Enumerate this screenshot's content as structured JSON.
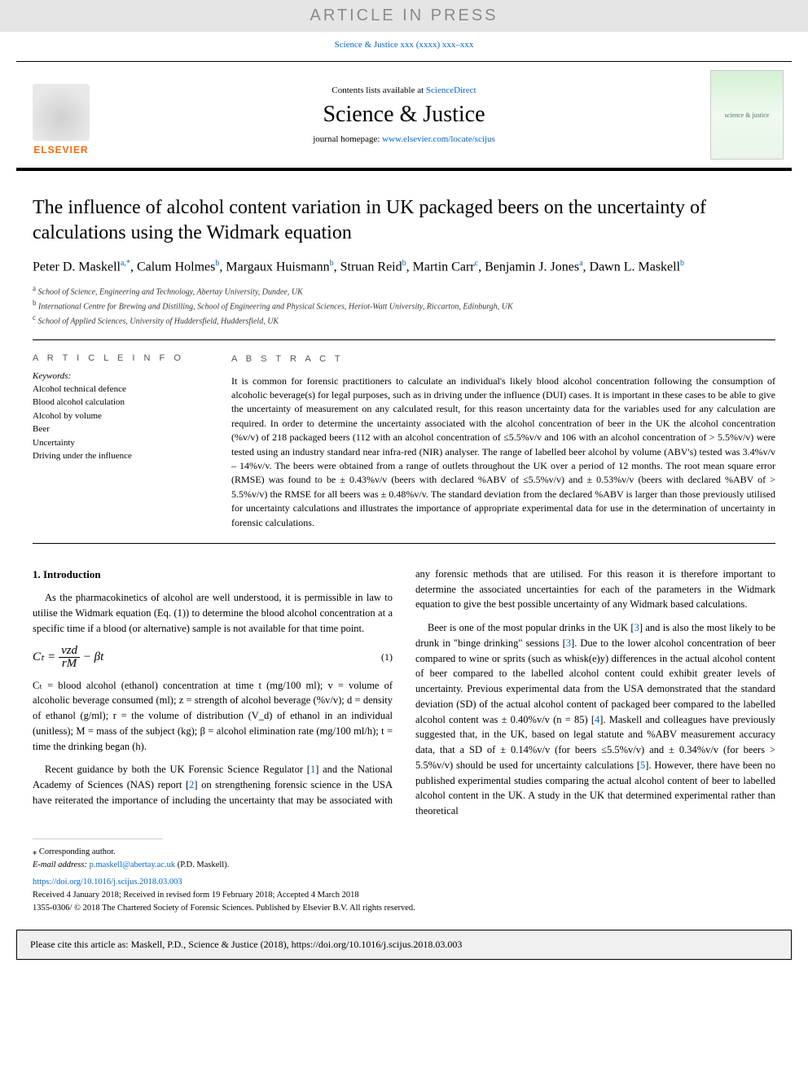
{
  "banner": {
    "text": "ARTICLE IN PRESS"
  },
  "journal_ref": "Science & Justice xxx (xxxx) xxx–xxx",
  "masthead": {
    "contents_prefix": "Contents lists available at ",
    "contents_link": "ScienceDirect",
    "journal_name": "Science & Justice",
    "homepage_prefix": "journal homepage: ",
    "homepage_url": "www.elsevier.com/locate/scijus",
    "publisher": "ELSEVIER",
    "cover_label": "science & justice"
  },
  "title": "The influence of alcohol content variation in UK packaged beers on the uncertainty of calculations using the Widmark equation",
  "authors_html": "Peter D. Maskell<sup>a,*</sup>, Calum Holmes<sup>b</sup>, Margaux Huismann<sup>b</sup>, Struan Reid<sup>b</sup>, Martin Carr<sup>c</sup>, Benjamin J. Jones<sup>a</sup>, Dawn L. Maskell<sup>b</sup>",
  "affiliations": [
    {
      "sup": "a",
      "text": "School of Science, Engineering and Technology, Abertay University, Dundee, UK"
    },
    {
      "sup": "b",
      "text": "International Centre for Brewing and Distilling, School of Engineering and Physical Sciences, Heriot-Watt University, Riccarton, Edinburgh, UK"
    },
    {
      "sup": "c",
      "text": "School of Applied Sciences, University of Huddersfield, Huddersfield, UK"
    }
  ],
  "article_info": {
    "heading": "A R T I C L E  I N F O",
    "kw_label": "Keywords:",
    "keywords": [
      "Alcohol technical defence",
      "Blood alcohol calculation",
      "Alcohol by volume",
      "Beer",
      "Uncertainty",
      "Driving under the influence"
    ]
  },
  "abstract": {
    "heading": "A B S T R A C T",
    "text": "It is common for forensic practitioners to calculate an individual's likely blood alcohol concentration following the consumption of alcoholic beverage(s) for legal purposes, such as in driving under the influence (DUI) cases. It is important in these cases to be able to give the uncertainty of measurement on any calculated result, for this reason uncertainty data for the variables used for any calculation are required. In order to determine the uncertainty associated with the alcohol concentration of beer in the UK the alcohol concentration (%v/v) of 218 packaged beers (112 with an alcohol concentration of ≤5.5%v/v and 106 with an alcohol concentration of > 5.5%v/v) were tested using an industry standard near infra-red (NIR) analyser. The range of labelled beer alcohol by volume (ABV's) tested was 3.4%v/v – 14%v/v. The beers were obtained from a range of outlets throughout the UK over a period of 12 months. The root mean square error (RMSE) was found to be ± 0.43%v/v (beers with declared %ABV of ≤5.5%v/v) and ± 0.53%v/v (beers with declared %ABV of > 5.5%v/v) the RMSE for all beers was ± 0.48%v/v. The standard deviation from the declared %ABV is larger than those previously utilised for uncertainty calculations and illustrates the importance of appropriate experimental data for use in the determination of uncertainty in forensic calculations."
  },
  "body": {
    "section_heading": "1. Introduction",
    "p1": "As the pharmacokinetics of alcohol are well understood, it is permissible in law to utilise the Widmark equation (Eq. (1)) to determine the blood alcohol concentration at a specific time if a blood (or alternative) sample is not available for that time point.",
    "eq": {
      "num": "vzd",
      "den": "rM",
      "tail": " − βt",
      "lhs": "Cₜ = ",
      "number": "(1)"
    },
    "p2": "Cₜ = blood alcohol (ethanol) concentration at time t (mg/100 ml); v = volume of alcoholic beverage consumed (ml); z = strength of alcohol beverage (%v/v); d = density of ethanol (g/ml); r = the volume of distribution (V_d) of ethanol in an individual (unitless); M = mass of the subject (kg); β = alcohol elimination rate (mg/100 ml/h); t = time the drinking began (h).",
    "p3_a": "Recent guidance by both the UK Forensic Science Regulator [",
    "p3_r1": "1",
    "p3_b": "] and the National Academy of Sciences (NAS) report [",
    "p3_r2": "2",
    "p3_c": "] on strengthening forensic science in the USA have reiterated the importance of including the uncertainty that may be associated with any forensic methods that are utilised. For this reason it is therefore important to determine the associated uncertainties for each of the parameters in the Widmark equation to give the best possible uncertainty of any Widmark based calculations.",
    "p4_a": "Beer is one of the most popular drinks in the UK [",
    "p4_r3": "3",
    "p4_b": "] and is also the most likely to be drunk in \"binge drinking\" sessions [",
    "p4_r3b": "3",
    "p4_c": "]. Due to the lower alcohol concentration of beer compared to wine or sprits (such as whisk(e)y) differences in the actual alcohol content of beer compared to the labelled alcohol content could exhibit greater levels of uncertainty. Previous experimental data from the USA demonstrated that the standard deviation (SD) of the actual alcohol content of packaged beer compared to the labelled alcohol content was ± 0.40%v/v (n = 85) [",
    "p4_r4": "4",
    "p4_d": "]. Maskell and colleagues have previously suggested that, in the UK, based on legal statute and %ABV measurement accuracy data, that a SD of ± 0.14%v/v (for beers ≤5.5%v/v) and ± 0.34%v/v (for beers > 5.5%v/v) should be used for uncertainty calculations [",
    "p4_r5": "5",
    "p4_e": "]. However, there have been no published experimental studies comparing the actual alcohol content of beer to labelled alcohol content in the UK. A study in the UK that determined experimental rather than theoretical"
  },
  "footnotes": {
    "corr": "⁎ Corresponding author.",
    "email_label": "E-mail address: ",
    "email": "p.maskell@abertay.ac.uk",
    "email_suffix": " (P.D. Maskell)."
  },
  "doi": {
    "url": "https://doi.org/10.1016/j.scijus.2018.03.003",
    "received": "Received 4 January 2018; Received in revised form 19 February 2018; Accepted 4 March 2018",
    "copyright": "1355-0306/ © 2018 The Chartered Society of Forensic Sciences. Published by Elsevier B.V. All rights reserved."
  },
  "cite_box": "Please cite this article as: Maskell, P.D., Science & Justice (2018), https://doi.org/10.1016/j.scijus.2018.03.003",
  "colors": {
    "banner_bg": "#e5e5e5",
    "banner_text": "#8a8a8a",
    "link": "#0066cc",
    "elsevier_orange": "#ff6600",
    "cite_bg": "#f0f0f0"
  },
  "typography": {
    "title_size_pt": 24,
    "journal_name_size_pt": 28,
    "body_size_pt": 12.5,
    "abstract_size_pt": 12,
    "footnote_size_pt": 10.5
  }
}
